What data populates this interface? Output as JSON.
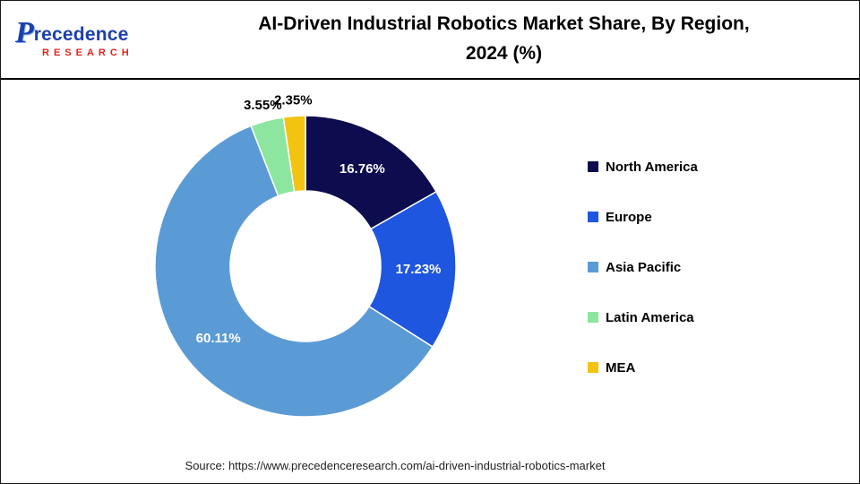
{
  "header": {
    "logo_p": "P",
    "logo_rest": "recedence",
    "logo_sub": "RESEARCH",
    "title_line1": "AI-Driven Industrial Robotics Market Share, By Region,",
    "title_line2": "2024 (%)"
  },
  "chart_data": {
    "type": "pie",
    "subtype": "donut",
    "title": "AI-Driven Industrial Robotics Market Share, By Region, 2024 (%)",
    "categories": [
      "North America",
      "Europe",
      "Asia Pacific",
      "Latin America",
      "MEA"
    ],
    "values": [
      16.76,
      17.23,
      60.11,
      3.55,
      2.35
    ],
    "labels": [
      "16.76%",
      "17.23%",
      "60.11%",
      "3.55%",
      "2.35%"
    ],
    "colors": [
      "#0d0c4e",
      "#1e56e0",
      "#5b9bd5",
      "#8ce69f",
      "#f2c311"
    ],
    "start_angle_deg": 0,
    "direction": "clockwise",
    "legend_position": "right",
    "inner_radius_ratio": 0.5
  },
  "footer": {
    "source": "Source: https://www.precedenceresearch.com/ai-driven-industrial-robotics-market"
  }
}
